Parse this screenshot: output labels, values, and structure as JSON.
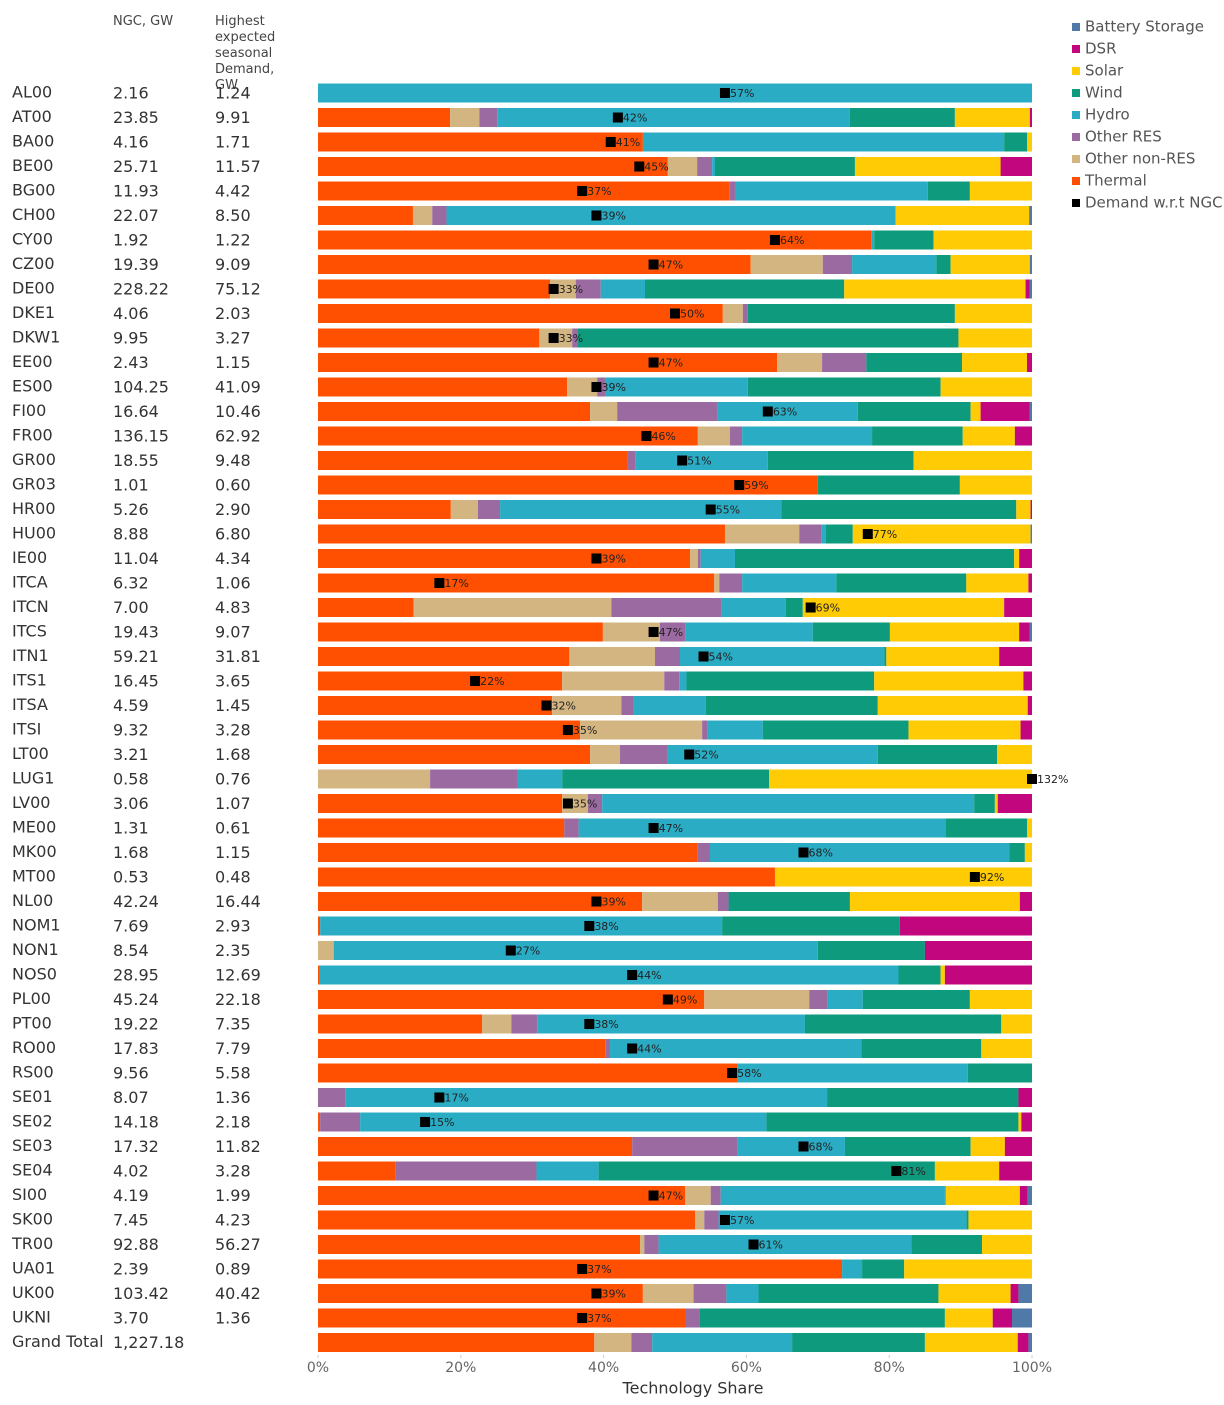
{
  "chart_data": {
    "type": "stacked-bar-horizontal",
    "columns": {
      "ngc_header": "NGC, GW",
      "demand_header": "Highest expected seasonal Demand, GW",
      "ngc": [
        "2.16",
        "23.85",
        "4.16",
        "25.71",
        "11.93",
        "22.07",
        "1.92",
        "19.39",
        "228.22",
        "4.06",
        "9.95",
        "2.43",
        "104.25",
        "16.64",
        "136.15",
        "18.55",
        "1.01",
        "5.26",
        "8.88",
        "11.04",
        "6.32",
        "7.00",
        "19.43",
        "59.21",
        "16.45",
        "4.59",
        "9.32",
        "3.21",
        "0.58",
        "3.06",
        "1.31",
        "1.68",
        "0.53",
        "42.24",
        "7.69",
        "8.54",
        "28.95",
        "45.24",
        "19.22",
        "17.83",
        "9.56",
        "8.07",
        "14.18",
        "17.32",
        "4.02",
        "4.19",
        "7.45",
        "92.88",
        "2.39",
        "103.42",
        "3.70",
        "1,227.18"
      ],
      "demand": [
        "1.24",
        "9.91",
        "1.71",
        "11.57",
        "4.42",
        "8.50",
        "1.22",
        "9.09",
        "75.12",
        "2.03",
        "3.27",
        "1.15",
        "41.09",
        "10.46",
        "62.92",
        "9.48",
        "0.60",
        "2.90",
        "6.80",
        "4.34",
        "1.06",
        "4.83",
        "9.07",
        "31.81",
        "3.65",
        "1.45",
        "3.28",
        "1.68",
        "0.76",
        "1.07",
        "0.61",
        "1.15",
        "0.48",
        "16.44",
        "2.93",
        "2.35",
        "12.69",
        "22.18",
        "7.35",
        "7.79",
        "5.58",
        "1.36",
        "2.18",
        "11.82",
        "3.28",
        "1.99",
        "4.23",
        "56.27",
        "0.89",
        "40.42",
        "1.36",
        null
      ]
    },
    "categories": [
      "AL00",
      "AT00",
      "BA00",
      "BE00",
      "BG00",
      "CH00",
      "CY00",
      "CZ00",
      "DE00",
      "DKE1",
      "DKW1",
      "EE00",
      "ES00",
      "FI00",
      "FR00",
      "GR00",
      "GR03",
      "HR00",
      "HU00",
      "IE00",
      "ITCA",
      "ITCN",
      "ITCS",
      "ITN1",
      "ITS1",
      "ITSA",
      "ITSI",
      "LT00",
      "LUG1",
      "LV00",
      "ME00",
      "MK00",
      "MT00",
      "NL00",
      "NOM1",
      "NON1",
      "NOS0",
      "PL00",
      "PT00",
      "RO00",
      "RS00",
      "SE01",
      "SE02",
      "SE03",
      "SE04",
      "SI00",
      "SK00",
      "TR00",
      "UA01",
      "UK00",
      "UKNI",
      "Grand Total"
    ],
    "series": [
      {
        "name": "Thermal",
        "color": "#fe5000",
        "values": [
          0,
          18.5,
          45.5,
          49,
          57.6,
          13.3,
          77.5,
          60.6,
          32.5,
          56.7,
          31,
          64.3,
          34.9,
          38.1,
          53.2,
          43.4,
          70,
          18.6,
          57,
          52.1,
          55.5,
          13.4,
          39.9,
          35.2,
          34.2,
          32.8,
          36.7,
          38.1,
          0,
          34.2,
          34.5,
          53.1,
          64,
          45.4,
          0.3,
          0,
          0.2,
          54.1,
          23,
          40.3,
          58.8,
          0,
          0.3,
          44,
          10.9,
          51.4,
          52.8,
          45.1,
          73.4,
          45.5,
          51.4,
          38.7
        ]
      },
      {
        "name": "Other non-RES",
        "color": "#d3b581",
        "values": [
          0,
          4.1,
          0,
          4.1,
          0,
          2.7,
          0,
          10.1,
          3.6,
          2.8,
          4.6,
          6.3,
          4.2,
          3.8,
          4.5,
          0,
          0,
          3.8,
          10.4,
          1.1,
          0.7,
          27.7,
          8,
          12,
          14.3,
          9.7,
          17.1,
          4.2,
          15.7,
          3.6,
          0,
          0,
          0,
          10.6,
          0,
          2.2,
          0,
          14.7,
          4.1,
          0,
          0,
          0,
          0,
          0,
          0,
          3.6,
          1.3,
          0.6,
          0,
          7.1,
          0,
          5.2
        ]
      },
      {
        "name": "Other RES",
        "color": "#9a6aa0",
        "values": [
          0,
          2.5,
          0,
          2.1,
          0.8,
          2,
          0,
          4.1,
          3.5,
          0.7,
          0.7,
          6.2,
          1.1,
          14.1,
          1.7,
          1.1,
          0,
          3.1,
          3.1,
          0.4,
          3.2,
          15.4,
          3.6,
          3.5,
          2.1,
          1.7,
          0.8,
          6.7,
          12.3,
          2,
          2,
          1.8,
          0,
          1.5,
          0,
          0,
          0,
          2.5,
          3.6,
          0.6,
          0,
          3.8,
          5.6,
          14.8,
          19.7,
          1.4,
          2,
          2,
          0,
          4.6,
          2,
          2.9
        ]
      },
      {
        "name": "Hydro",
        "color": "#2aacc5",
        "values": [
          100,
          49.4,
          50.6,
          0.4,
          27,
          62.9,
          0.4,
          11.8,
          6.2,
          0,
          0,
          0,
          20,
          19.6,
          18.2,
          18.5,
          0,
          39.4,
          0.6,
          4.8,
          13.2,
          9,
          17.8,
          28.6,
          1,
          10.1,
          7.7,
          29.4,
          6.2,
          52.1,
          51.4,
          41.9,
          0,
          0,
          56.3,
          67.8,
          81.1,
          5,
          37.5,
          35.2,
          32.2,
          67.5,
          56.9,
          15,
          8.7,
          31.4,
          34.7,
          35.4,
          2.8,
          4.5,
          0,
          19.6
        ]
      },
      {
        "name": "Wind",
        "color": "#0e9a7d",
        "values": [
          0,
          14.7,
          3.2,
          19.6,
          5.9,
          0,
          8.3,
          2,
          27.9,
          29,
          53.4,
          13.4,
          27,
          15.8,
          12.7,
          20.4,
          19.9,
          32.9,
          3.8,
          39.1,
          18.2,
          2.4,
          10.8,
          0.3,
          26.3,
          24.1,
          20.4,
          16.7,
          29,
          2.9,
          11.4,
          2.2,
          0,
          17,
          24.9,
          15,
          5.9,
          15,
          27.5,
          16.8,
          9,
          26.8,
          35.3,
          17.6,
          47.1,
          0.1,
          0.3,
          9.9,
          5.9,
          25.2,
          34.4,
          18.6
        ]
      },
      {
        "name": "Solar",
        "color": "#ffcb05",
        "values": [
          0,
          10.5,
          0.7,
          20.4,
          8.7,
          18.7,
          13.8,
          11.1,
          25.4,
          10.8,
          10.3,
          9.1,
          12.8,
          1.4,
          7.3,
          16.6,
          10.1,
          2,
          24.9,
          0.7,
          8.7,
          28.2,
          18.1,
          15.8,
          20.9,
          21,
          15.7,
          4.9,
          36.8,
          0.4,
          0.7,
          1,
          36,
          23.8,
          0,
          0,
          0.6,
          8.7,
          4.3,
          7.1,
          0,
          0,
          0.4,
          4.8,
          9,
          10.4,
          8.9,
          7,
          17.9,
          10.1,
          6.7,
          13
        ]
      },
      {
        "name": "DSR",
        "color": "#c2077e",
        "values": [
          0,
          0.3,
          0,
          4.4,
          0,
          0,
          0,
          0,
          0.6,
          0,
          0,
          0.7,
          0,
          6.9,
          2.4,
          0,
          0,
          0.2,
          0,
          1.8,
          0.5,
          3.9,
          1.5,
          4.6,
          1.2,
          0.6,
          1.6,
          0,
          0,
          4.8,
          0,
          0,
          0,
          1.7,
          18.5,
          15,
          12.2,
          0,
          0,
          0,
          0,
          1.9,
          1.5,
          3.8,
          4.6,
          1.1,
          0,
          0,
          0,
          1.1,
          2.7,
          1.5
        ]
      },
      {
        "name": "Battery Storage",
        "color": "#4f7aa8",
        "values": [
          0,
          0,
          0,
          0,
          0,
          0.4,
          0,
          0.3,
          0.3,
          0,
          0,
          0,
          0,
          0.3,
          0,
          0,
          0,
          0,
          0.2,
          0,
          0,
          0,
          0.3,
          0,
          0,
          0,
          0,
          0,
          0,
          0,
          0,
          0,
          0,
          0,
          0,
          0,
          0,
          0,
          0,
          0,
          0,
          0,
          0,
          0,
          0,
          0.6,
          0,
          0,
          0,
          1.9,
          2.8,
          0.5
        ]
      }
    ],
    "demand": {
      "name": "Demand w.r.t NGC",
      "color": "#000000",
      "values": [
        57,
        42,
        41,
        45,
        37,
        39,
        64,
        47,
        33,
        50,
        33,
        47,
        39,
        63,
        46,
        51,
        59,
        55,
        77,
        39,
        17,
        69,
        47,
        54,
        22,
        32,
        35,
        52,
        132,
        35,
        47,
        68,
        92,
        39,
        38,
        27,
        44,
        49,
        38,
        44,
        58,
        17,
        15,
        68,
        81,
        47,
        57,
        61,
        37,
        39,
        37,
        null
      ],
      "value_labels": [
        "57%",
        "42%",
        "41%",
        "45%",
        "37%",
        "39%",
        "64%",
        "47%",
        "33%",
        "50%",
        "33%",
        "47%",
        "39%",
        "63%",
        "46%",
        "51%",
        "59%",
        "55%",
        "77%",
        "39%",
        "17%",
        "69%",
        "47%",
        "54%",
        "22%",
        "32%",
        "35%",
        "52%",
        "132%",
        "35%",
        "47%",
        "68%",
        "92%",
        "39%",
        "38%",
        "27%",
        "44%",
        "49%",
        "38%",
        "44%",
        "58%",
        "17%",
        "15%",
        "68%",
        "81%",
        "47%",
        "57%",
        "61%",
        "37%",
        "39%",
        "37%",
        null
      ]
    },
    "xlabel": "Technology Share",
    "xlim": [
      0,
      100
    ],
    "xticks": [
      {
        "value": 0,
        "label": "0%"
      },
      {
        "value": 20,
        "label": "20%"
      },
      {
        "value": 40,
        "label": "40%"
      },
      {
        "value": 60,
        "label": "60%"
      },
      {
        "value": 80,
        "label": "80%"
      },
      {
        "value": 100,
        "label": "100%"
      }
    ],
    "legend": "top-right"
  }
}
